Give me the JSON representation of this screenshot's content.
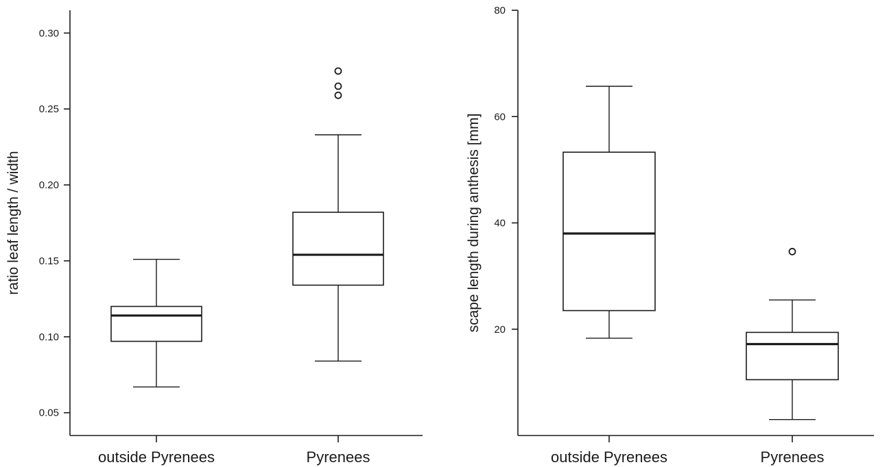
{
  "chart_data": [
    {
      "type": "boxplot",
      "ylabel": "ratio leaf length / width",
      "ylim": [
        0.035,
        0.315
      ],
      "yticks": [
        0.05,
        0.1,
        0.15,
        0.2,
        0.25,
        0.3
      ],
      "ytick_labels": [
        "0.05",
        "0.10",
        "0.15",
        "0.20",
        "0.25",
        "0.30"
      ],
      "categories": [
        "outside Pyrenees",
        "Pyrenees"
      ],
      "boxes": [
        {
          "category": "outside Pyrenees",
          "whisker_low": 0.067,
          "q1": 0.097,
          "median": 0.114,
          "q3": 0.12,
          "whisker_high": 0.151,
          "outliers": []
        },
        {
          "category": "Pyrenees",
          "whisker_low": 0.084,
          "q1": 0.134,
          "median": 0.154,
          "q3": 0.182,
          "whisker_high": 0.233,
          "outliers": [
            0.259,
            0.265,
            0.275
          ]
        }
      ]
    },
    {
      "type": "boxplot",
      "ylabel": "scape length during anthesis [mm]",
      "ylim": [
        0,
        80
      ],
      "yticks": [
        20,
        40,
        60,
        80
      ],
      "ytick_labels": [
        "20",
        "40",
        "60",
        "80"
      ],
      "categories": [
        "outside Pyrenees",
        "Pyrenees"
      ],
      "boxes": [
        {
          "category": "outside Pyrenees",
          "whisker_low": 18.3,
          "q1": 23.5,
          "median": 38.0,
          "q3": 53.3,
          "whisker_high": 65.7,
          "outliers": []
        },
        {
          "category": "Pyrenees",
          "whisker_low": 3.0,
          "q1": 10.5,
          "median": 17.2,
          "q3": 19.4,
          "whisker_high": 25.5,
          "outliers": [
            34.6
          ]
        }
      ]
    }
  ]
}
